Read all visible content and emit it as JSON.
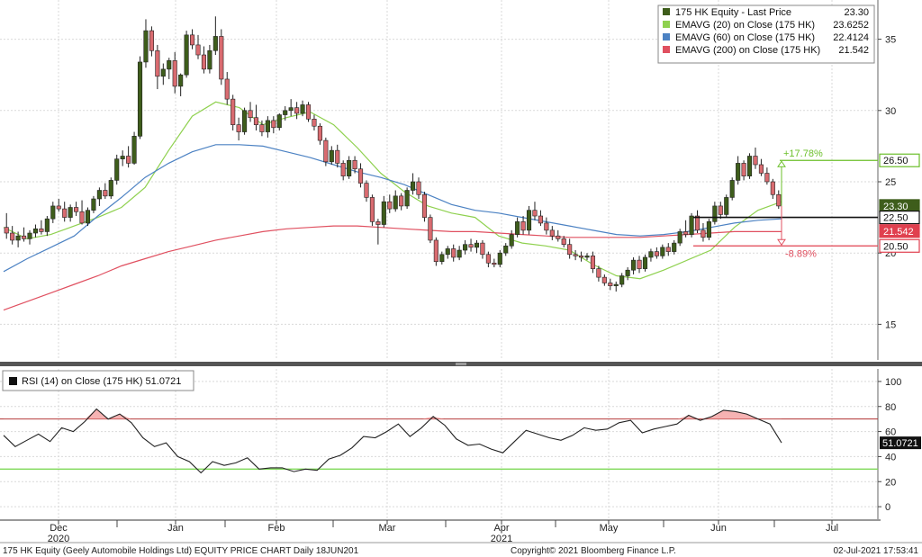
{
  "chart_data": [
    {
      "type": "candlestick",
      "title": "175 HK Equity - Last Price",
      "ylim": [
        12.5,
        37.5
      ],
      "y_ticks": [
        15,
        20,
        25,
        30,
        35
      ],
      "x_month_labels": [
        "Dec",
        "Jan",
        "Feb",
        "Mar",
        "Apr",
        "May",
        "Jun",
        "Jul"
      ],
      "x_year_labels": [
        {
          "month": "Dec",
          "year": "2020"
        },
        {
          "month": "Apr",
          "year": "2021"
        }
      ],
      "candles": [
        {
          "o": 21.8,
          "h": 22.8,
          "l": 21.0,
          "c": 21.4
        },
        {
          "o": 21.4,
          "h": 21.9,
          "l": 20.6,
          "c": 20.9
        },
        {
          "o": 20.9,
          "h": 21.5,
          "l": 20.4,
          "c": 21.2
        },
        {
          "o": 21.2,
          "h": 21.8,
          "l": 20.8,
          "c": 21.0
        },
        {
          "o": 21.0,
          "h": 21.6,
          "l": 20.6,
          "c": 21.4
        },
        {
          "o": 21.4,
          "h": 22.0,
          "l": 21.1,
          "c": 21.7
        },
        {
          "o": 21.7,
          "h": 22.3,
          "l": 21.3,
          "c": 21.5
        },
        {
          "o": 21.5,
          "h": 22.6,
          "l": 21.2,
          "c": 22.4
        },
        {
          "o": 22.4,
          "h": 23.6,
          "l": 22.1,
          "c": 23.3
        },
        {
          "o": 23.3,
          "h": 23.8,
          "l": 22.9,
          "c": 23.1
        },
        {
          "o": 23.1,
          "h": 23.6,
          "l": 22.2,
          "c": 22.5
        },
        {
          "o": 22.5,
          "h": 23.4,
          "l": 22.2,
          "c": 23.2
        },
        {
          "o": 23.2,
          "h": 23.6,
          "l": 22.6,
          "c": 22.9
        },
        {
          "o": 22.9,
          "h": 23.7,
          "l": 22.0,
          "c": 22.1
        },
        {
          "o": 22.1,
          "h": 23.2,
          "l": 21.9,
          "c": 23.0
        },
        {
          "o": 23.0,
          "h": 24.0,
          "l": 22.8,
          "c": 23.8
        },
        {
          "o": 23.8,
          "h": 24.6,
          "l": 23.3,
          "c": 24.4
        },
        {
          "o": 24.4,
          "h": 24.9,
          "l": 23.8,
          "c": 24.0
        },
        {
          "o": 24.0,
          "h": 25.3,
          "l": 23.8,
          "c": 25.1
        },
        {
          "o": 25.1,
          "h": 26.9,
          "l": 24.8,
          "c": 26.6
        },
        {
          "o": 26.6,
          "h": 27.2,
          "l": 26.1,
          "c": 26.8
        },
        {
          "o": 26.8,
          "h": 27.5,
          "l": 26.0,
          "c": 26.3
        },
        {
          "o": 26.3,
          "h": 28.5,
          "l": 26.2,
          "c": 28.2
        },
        {
          "o": 28.2,
          "h": 33.8,
          "l": 28.0,
          "c": 33.4
        },
        {
          "o": 33.4,
          "h": 36.4,
          "l": 33.0,
          "c": 35.6
        },
        {
          "o": 35.6,
          "h": 35.9,
          "l": 33.8,
          "c": 34.2
        },
        {
          "o": 34.2,
          "h": 34.6,
          "l": 31.5,
          "c": 32.4
        },
        {
          "o": 32.4,
          "h": 33.3,
          "l": 31.8,
          "c": 32.9
        },
        {
          "o": 32.9,
          "h": 33.7,
          "l": 32.2,
          "c": 33.5
        },
        {
          "o": 33.5,
          "h": 34.1,
          "l": 31.2,
          "c": 31.7
        },
        {
          "o": 31.7,
          "h": 32.6,
          "l": 31.0,
          "c": 32.5
        },
        {
          "o": 32.5,
          "h": 35.6,
          "l": 32.3,
          "c": 35.3
        },
        {
          "o": 35.3,
          "h": 35.7,
          "l": 34.3,
          "c": 34.6
        },
        {
          "o": 34.6,
          "h": 35.3,
          "l": 33.6,
          "c": 33.9
        },
        {
          "o": 33.9,
          "h": 34.5,
          "l": 32.6,
          "c": 32.9
        },
        {
          "o": 32.9,
          "h": 34.6,
          "l": 32.6,
          "c": 34.2
        },
        {
          "o": 34.2,
          "h": 36.6,
          "l": 33.9,
          "c": 35.2
        },
        {
          "o": 35.2,
          "h": 35.7,
          "l": 31.8,
          "c": 32.2
        },
        {
          "o": 32.2,
          "h": 32.7,
          "l": 30.4,
          "c": 30.8
        },
        {
          "o": 30.8,
          "h": 31.1,
          "l": 28.6,
          "c": 29.0
        },
        {
          "o": 29.0,
          "h": 29.5,
          "l": 27.9,
          "c": 28.5
        },
        {
          "o": 28.5,
          "h": 30.2,
          "l": 28.3,
          "c": 30.0
        },
        {
          "o": 30.0,
          "h": 30.6,
          "l": 29.2,
          "c": 29.5
        },
        {
          "o": 29.5,
          "h": 30.4,
          "l": 28.6,
          "c": 29.0
        },
        {
          "o": 29.0,
          "h": 29.3,
          "l": 28.2,
          "c": 28.5
        },
        {
          "o": 28.5,
          "h": 29.6,
          "l": 28.1,
          "c": 29.3
        },
        {
          "o": 29.3,
          "h": 29.6,
          "l": 28.4,
          "c": 28.8
        },
        {
          "o": 28.8,
          "h": 29.8,
          "l": 28.6,
          "c": 29.7
        },
        {
          "o": 29.7,
          "h": 30.3,
          "l": 29.3,
          "c": 30.0
        },
        {
          "o": 30.0,
          "h": 30.8,
          "l": 29.6,
          "c": 30.2
        },
        {
          "o": 30.2,
          "h": 30.6,
          "l": 29.4,
          "c": 29.8
        },
        {
          "o": 29.8,
          "h": 30.7,
          "l": 29.6,
          "c": 30.4
        },
        {
          "o": 30.4,
          "h": 30.6,
          "l": 29.2,
          "c": 29.4
        },
        {
          "o": 29.4,
          "h": 29.7,
          "l": 28.6,
          "c": 28.9
        },
        {
          "o": 28.9,
          "h": 29.1,
          "l": 27.6,
          "c": 27.9
        },
        {
          "o": 27.9,
          "h": 28.1,
          "l": 26.1,
          "c": 26.4
        },
        {
          "o": 26.4,
          "h": 27.5,
          "l": 26.2,
          "c": 27.2
        },
        {
          "o": 27.2,
          "h": 27.6,
          "l": 26.0,
          "c": 26.3
        },
        {
          "o": 26.3,
          "h": 26.5,
          "l": 25.1,
          "c": 25.4
        },
        {
          "o": 25.4,
          "h": 26.8,
          "l": 25.2,
          "c": 26.5
        },
        {
          "o": 26.5,
          "h": 26.8,
          "l": 25.6,
          "c": 25.9
        },
        {
          "o": 25.9,
          "h": 26.3,
          "l": 24.6,
          "c": 24.9
        },
        {
          "o": 24.9,
          "h": 25.1,
          "l": 23.6,
          "c": 23.9
        },
        {
          "o": 23.9,
          "h": 24.1,
          "l": 21.9,
          "c": 22.2
        },
        {
          "o": 22.2,
          "h": 22.4,
          "l": 20.6,
          "c": 22.0
        },
        {
          "o": 22.0,
          "h": 24.0,
          "l": 21.8,
          "c": 23.6
        },
        {
          "o": 23.6,
          "h": 24.1,
          "l": 22.8,
          "c": 23.1
        },
        {
          "o": 23.1,
          "h": 24.4,
          "l": 22.9,
          "c": 24.0
        },
        {
          "o": 24.0,
          "h": 24.2,
          "l": 23.0,
          "c": 23.3
        },
        {
          "o": 23.3,
          "h": 24.6,
          "l": 23.1,
          "c": 24.4
        },
        {
          "o": 24.4,
          "h": 25.6,
          "l": 24.1,
          "c": 25.0
        },
        {
          "o": 25.0,
          "h": 25.3,
          "l": 23.8,
          "c": 24.1
        },
        {
          "o": 24.1,
          "h": 24.3,
          "l": 22.2,
          "c": 22.5
        },
        {
          "o": 22.5,
          "h": 22.7,
          "l": 20.7,
          "c": 20.9
        },
        {
          "o": 20.9,
          "h": 21.1,
          "l": 19.1,
          "c": 19.4
        },
        {
          "o": 19.4,
          "h": 20.1,
          "l": 19.2,
          "c": 19.9
        },
        {
          "o": 19.9,
          "h": 20.5,
          "l": 19.6,
          "c": 20.3
        },
        {
          "o": 20.3,
          "h": 20.6,
          "l": 19.4,
          "c": 19.7
        },
        {
          "o": 19.7,
          "h": 20.5,
          "l": 19.5,
          "c": 20.2
        },
        {
          "o": 20.2,
          "h": 20.9,
          "l": 19.9,
          "c": 20.6
        },
        {
          "o": 20.6,
          "h": 21.0,
          "l": 20.1,
          "c": 20.4
        },
        {
          "o": 20.4,
          "h": 20.9,
          "l": 20.0,
          "c": 20.7
        },
        {
          "o": 20.7,
          "h": 20.9,
          "l": 19.6,
          "c": 19.9
        },
        {
          "o": 19.9,
          "h": 20.1,
          "l": 19.0,
          "c": 19.3
        },
        {
          "o": 19.3,
          "h": 19.6,
          "l": 19.0,
          "c": 19.2
        },
        {
          "o": 19.2,
          "h": 20.2,
          "l": 19.0,
          "c": 20.0
        },
        {
          "o": 20.0,
          "h": 20.7,
          "l": 19.8,
          "c": 20.5
        },
        {
          "o": 20.5,
          "h": 21.6,
          "l": 20.3,
          "c": 21.3
        },
        {
          "o": 21.3,
          "h": 22.5,
          "l": 21.1,
          "c": 22.2
        },
        {
          "o": 22.2,
          "h": 22.6,
          "l": 21.3,
          "c": 21.6
        },
        {
          "o": 21.6,
          "h": 23.3,
          "l": 21.3,
          "c": 23.0
        },
        {
          "o": 23.0,
          "h": 23.6,
          "l": 22.3,
          "c": 22.6
        },
        {
          "o": 22.6,
          "h": 23.0,
          "l": 21.9,
          "c": 22.1
        },
        {
          "o": 22.1,
          "h": 22.5,
          "l": 21.3,
          "c": 21.6
        },
        {
          "o": 21.6,
          "h": 21.9,
          "l": 20.9,
          "c": 21.2
        },
        {
          "o": 21.2,
          "h": 21.6,
          "l": 20.8,
          "c": 21.0
        },
        {
          "o": 21.0,
          "h": 21.2,
          "l": 20.4,
          "c": 20.6
        },
        {
          "o": 20.6,
          "h": 21.0,
          "l": 19.6,
          "c": 19.9
        },
        {
          "o": 19.9,
          "h": 20.2,
          "l": 19.5,
          "c": 19.8
        },
        {
          "o": 19.8,
          "h": 20.1,
          "l": 19.4,
          "c": 19.7
        },
        {
          "o": 19.7,
          "h": 20.0,
          "l": 19.5,
          "c": 19.8
        },
        {
          "o": 19.8,
          "h": 20.1,
          "l": 18.6,
          "c": 18.9
        },
        {
          "o": 18.9,
          "h": 19.1,
          "l": 18.0,
          "c": 18.3
        },
        {
          "o": 18.3,
          "h": 18.5,
          "l": 17.7,
          "c": 17.9
        },
        {
          "o": 17.9,
          "h": 18.2,
          "l": 17.4,
          "c": 17.7
        },
        {
          "o": 17.7,
          "h": 18.0,
          "l": 17.3,
          "c": 17.8
        },
        {
          "o": 17.8,
          "h": 18.6,
          "l": 17.6,
          "c": 18.4
        },
        {
          "o": 18.4,
          "h": 19.0,
          "l": 18.1,
          "c": 18.8
        },
        {
          "o": 18.8,
          "h": 19.7,
          "l": 18.5,
          "c": 19.5
        },
        {
          "o": 19.5,
          "h": 19.8,
          "l": 18.6,
          "c": 18.9
        },
        {
          "o": 18.9,
          "h": 19.9,
          "l": 18.7,
          "c": 19.7
        },
        {
          "o": 19.7,
          "h": 20.3,
          "l": 19.4,
          "c": 20.1
        },
        {
          "o": 20.1,
          "h": 20.4,
          "l": 19.6,
          "c": 19.8
        },
        {
          "o": 19.8,
          "h": 20.6,
          "l": 19.6,
          "c": 20.4
        },
        {
          "o": 20.4,
          "h": 20.7,
          "l": 19.8,
          "c": 20.1
        },
        {
          "o": 20.1,
          "h": 20.9,
          "l": 19.9,
          "c": 20.7
        },
        {
          "o": 20.7,
          "h": 21.7,
          "l": 20.5,
          "c": 21.5
        },
        {
          "o": 21.5,
          "h": 22.3,
          "l": 21.1,
          "c": 21.3
        },
        {
          "o": 21.3,
          "h": 22.8,
          "l": 21.1,
          "c": 22.6
        },
        {
          "o": 22.6,
          "h": 23.0,
          "l": 21.4,
          "c": 21.6
        },
        {
          "o": 21.6,
          "h": 22.1,
          "l": 20.8,
          "c": 21.1
        },
        {
          "o": 21.1,
          "h": 22.4,
          "l": 20.9,
          "c": 22.2
        },
        {
          "o": 22.2,
          "h": 23.6,
          "l": 22.0,
          "c": 23.3
        },
        {
          "o": 23.3,
          "h": 23.6,
          "l": 22.4,
          "c": 22.7
        },
        {
          "o": 22.7,
          "h": 24.1,
          "l": 22.5,
          "c": 23.9
        },
        {
          "o": 23.9,
          "h": 25.3,
          "l": 23.7,
          "c": 25.1
        },
        {
          "o": 25.1,
          "h": 26.8,
          "l": 24.8,
          "c": 26.3
        },
        {
          "o": 26.3,
          "h": 26.5,
          "l": 25.1,
          "c": 25.4
        },
        {
          "o": 25.4,
          "h": 27.0,
          "l": 25.2,
          "c": 26.8
        },
        {
          "o": 26.8,
          "h": 27.4,
          "l": 25.9,
          "c": 26.2
        },
        {
          "o": 26.2,
          "h": 26.6,
          "l": 25.4,
          "c": 25.6
        },
        {
          "o": 25.6,
          "h": 26.0,
          "l": 24.8,
          "c": 25.0
        },
        {
          "o": 25.0,
          "h": 25.2,
          "l": 23.8,
          "c": 24.1
        },
        {
          "o": 24.1,
          "h": 24.4,
          "l": 23.1,
          "c": 23.3
        }
      ],
      "series": [
        {
          "name": "175 HK Equity - Last Price",
          "last": "23.30",
          "color": "#3e5d1b"
        },
        {
          "name": "EMAVG (20)  on Close (175 HK)",
          "last": "23.6252",
          "color": "#8fd14f",
          "values": [
            21.8,
            21.0,
            21.3,
            21.9,
            22.5,
            23.2,
            24.6,
            27.2,
            29.6,
            30.6,
            30.2,
            29.0,
            29.5,
            29.9,
            29.0,
            27.4,
            25.6,
            24.3,
            23.3,
            22.8,
            22.5,
            21.2,
            20.7,
            20.5,
            20.2,
            19.2,
            18.4,
            18.2,
            18.8,
            19.5,
            20.2,
            21.8,
            23.0,
            23.6
          ]
        },
        {
          "name": "EMAVG (60)  on Close (175 HK)",
          "last": "22.4124",
          "color": "#4c82c3",
          "values": [
            18.7,
            19.6,
            20.4,
            21.2,
            22.6,
            23.9,
            25.3,
            26.3,
            27.1,
            27.6,
            27.6,
            27.5,
            27.1,
            26.7,
            26.2,
            25.7,
            25.3,
            24.8,
            24.1,
            23.4,
            23.0,
            22.8,
            22.5,
            22.2,
            21.9,
            21.6,
            21.3,
            21.2,
            21.3,
            21.5,
            21.8,
            22.1,
            22.3,
            22.4
          ]
        },
        {
          "name": "EMAVG (200)  on Close (175 HK)",
          "last": "21.542",
          "color": "#e05060",
          "values": [
            16.0,
            16.6,
            17.2,
            17.8,
            18.4,
            19.1,
            19.6,
            20.1,
            20.5,
            20.9,
            21.2,
            21.5,
            21.7,
            21.8,
            21.9,
            21.9,
            21.8,
            21.7,
            21.6,
            21.5,
            21.5,
            21.4,
            21.3,
            21.2,
            21.1,
            21.1,
            21.1,
            21.1,
            21.2,
            21.3,
            21.4,
            21.5,
            21.5,
            21.5
          ]
        }
      ],
      "tags": [
        {
          "value": 26.5,
          "label": "26.50",
          "style": "green-outline"
        },
        {
          "value": 23.3,
          "label": "23.30",
          "style": "olive"
        },
        {
          "value": 22.5,
          "label": "22.50",
          "style": "black-outline"
        },
        {
          "value": 21.542,
          "label": "21.542",
          "style": "red"
        },
        {
          "value": 20.5,
          "label": "20.50",
          "style": "red-outline"
        }
      ],
      "annotations": [
        {
          "text": "+17.78%",
          "color": "#6bbf2a"
        },
        {
          "text": "-8.89%",
          "color": "#e05060"
        }
      ],
      "hlines": [
        26.5,
        22.5,
        20.5
      ]
    },
    {
      "type": "line",
      "title": "RSI (14)  on Close (175 HK) 51.0721",
      "ylim": [
        -10,
        110
      ],
      "y_ticks": [
        0,
        20,
        40,
        60,
        80,
        100
      ],
      "thresholds": {
        "upper": 70,
        "lower": 30
      },
      "last_label": "51.0721",
      "values": [
        57,
        48,
        53,
        58,
        52,
        63,
        60,
        68,
        78,
        70,
        74,
        67,
        55,
        48,
        51,
        40,
        36,
        27,
        36,
        33,
        35,
        39,
        30,
        31,
        31,
        28,
        30,
        29,
        38,
        41,
        47,
        56,
        55,
        60,
        66,
        56,
        63,
        72,
        65,
        54,
        49,
        50,
        46,
        43,
        52,
        61,
        58,
        55,
        53,
        57,
        63,
        61,
        62,
        67,
        69,
        59,
        62,
        64,
        66,
        73,
        69,
        72,
        77,
        76,
        74,
        70,
        66,
        51
      ]
    }
  ],
  "footer": {
    "left": "175 HK Equity (Geely Automobile Holdings Ltd) EQUITY PRICE CHART  Daily 18JUN201",
    "center": "Copyright© 2021 Bloomberg Finance L.P.",
    "right": "02-Jul-2021 17:53:41"
  }
}
